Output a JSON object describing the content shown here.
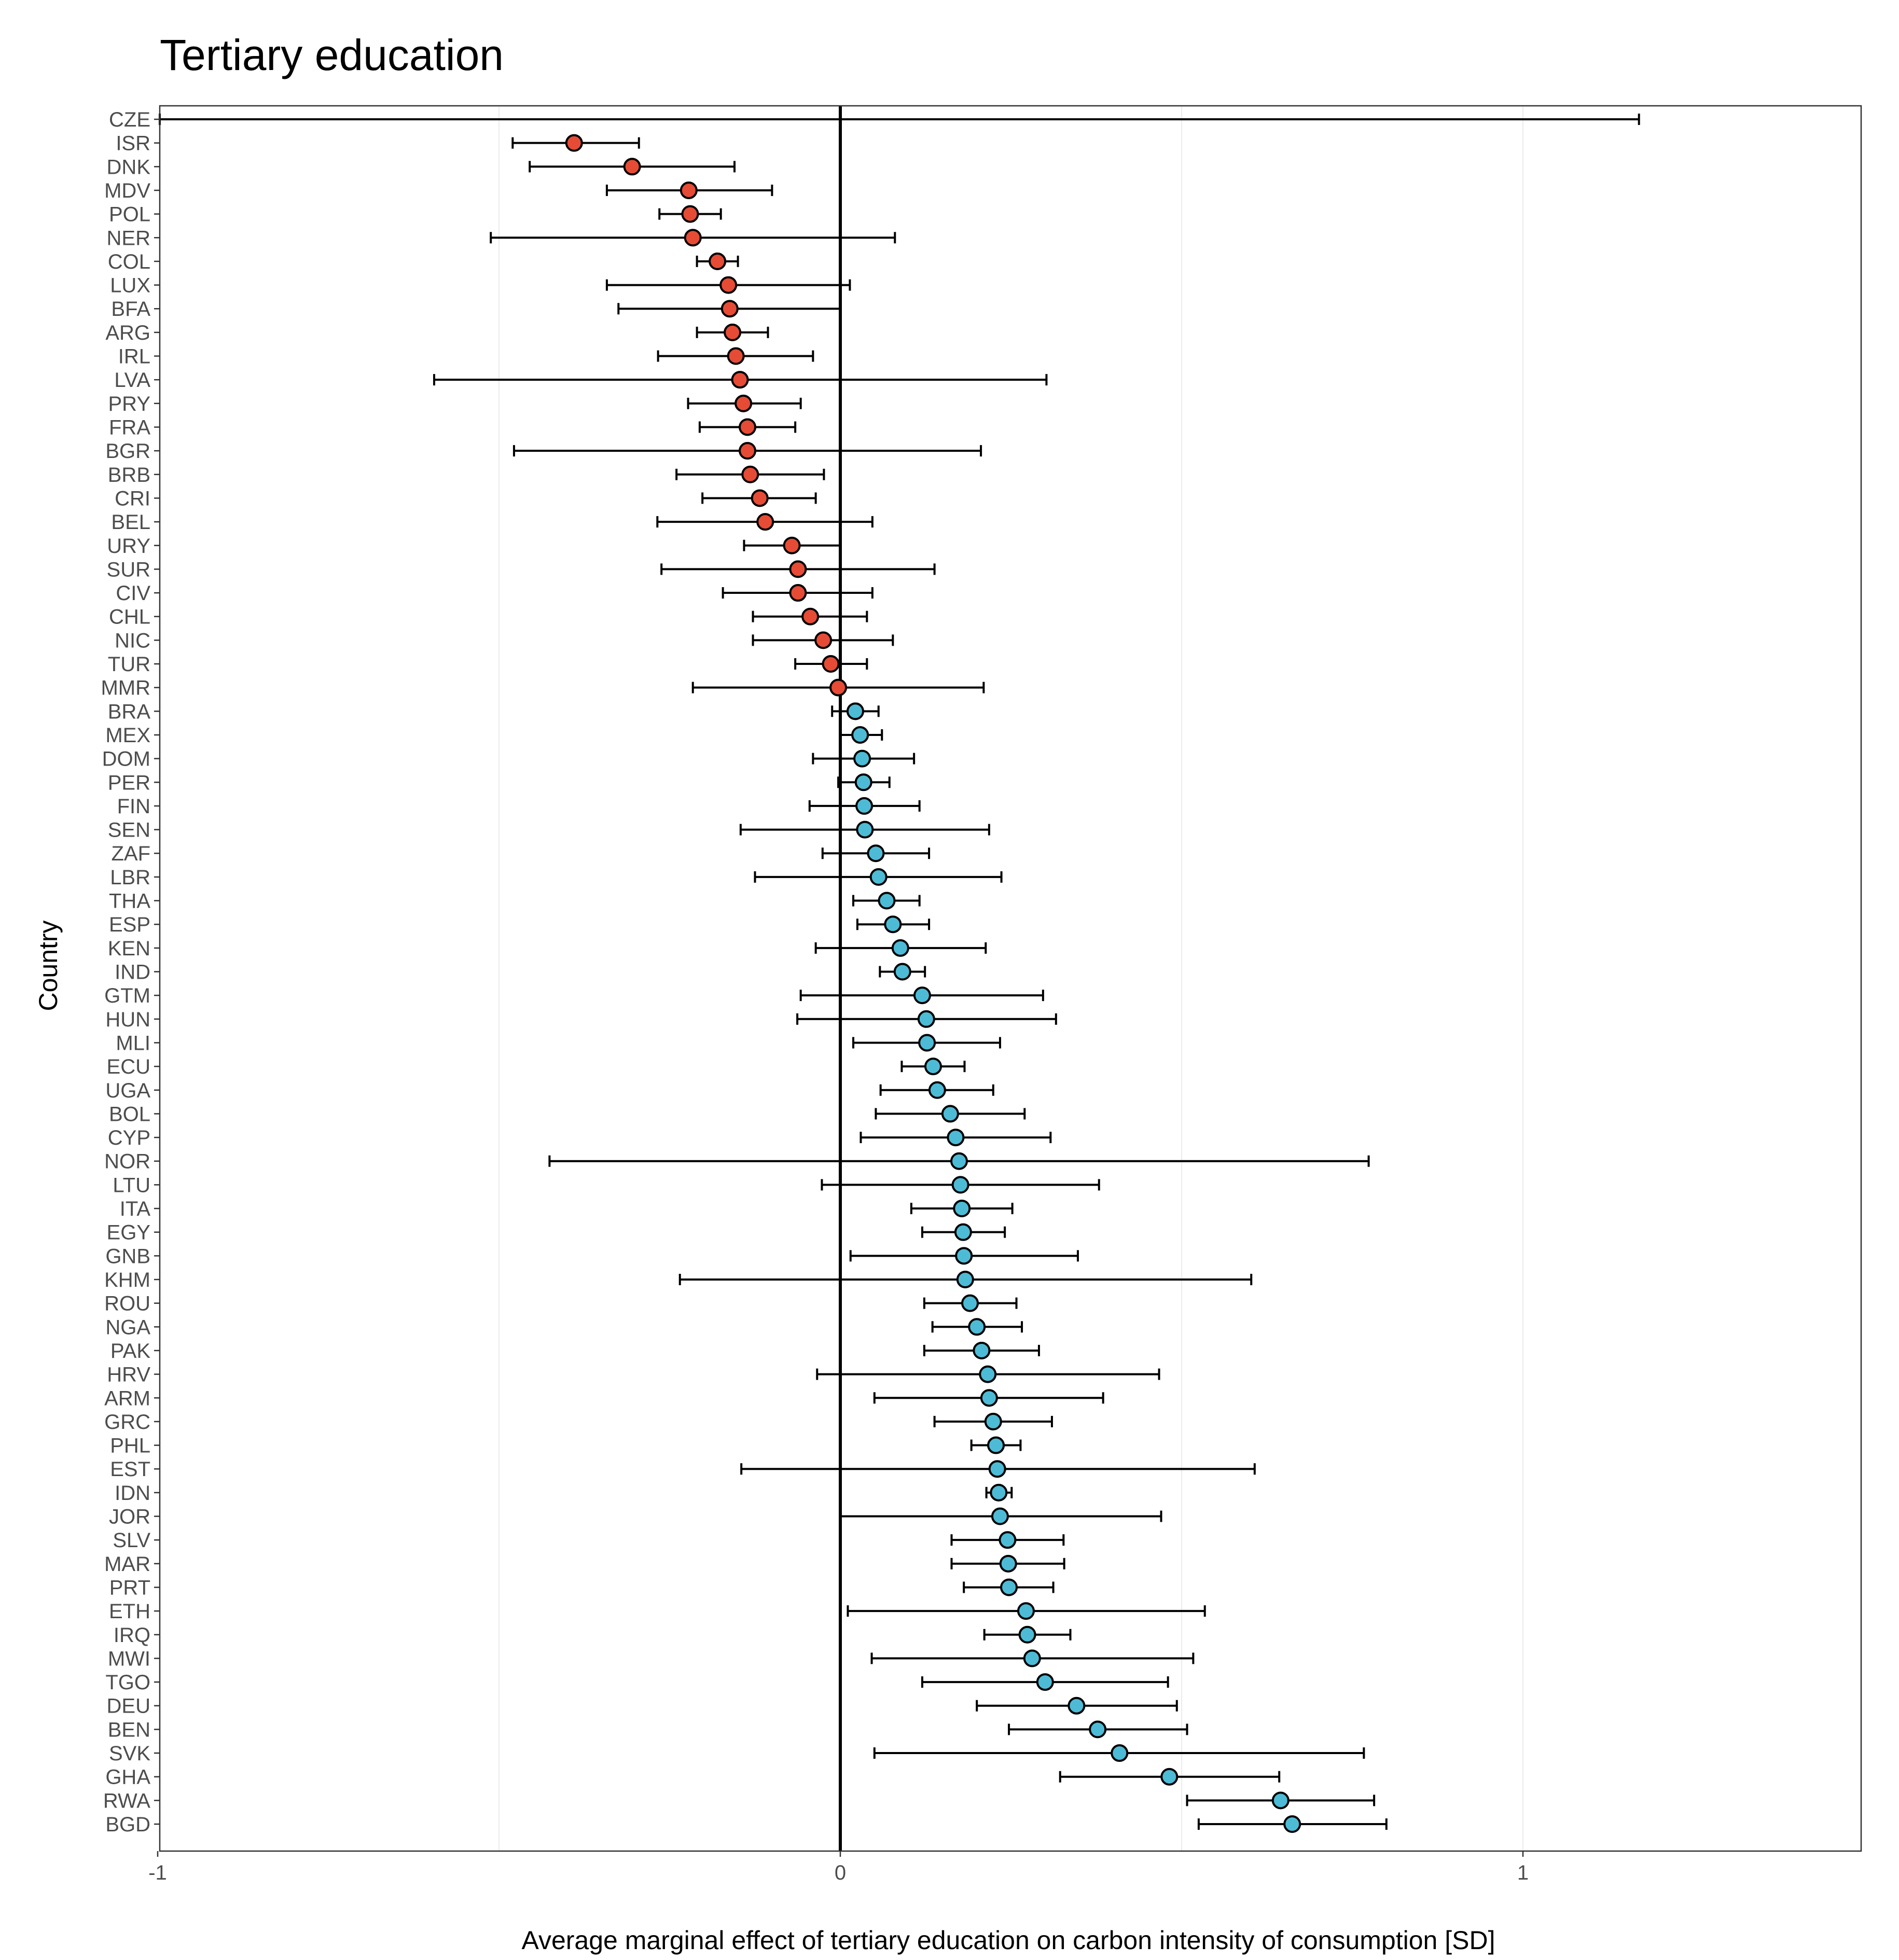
{
  "chart_data": {
    "type": "scatter",
    "title": "Tertiary education",
    "xlabel": "Average marginal effect of tertiary education on carbon intensity of consumption [SD]",
    "ylabel": "Country",
    "xlim": [
      -1,
      1.5
    ],
    "x_ticks": [
      "-1",
      "0",
      "1"
    ],
    "x_tick_values": [
      -1,
      0,
      1
    ],
    "grid": true,
    "colors": {
      "negative": "#E64B35",
      "positive": "#4DBBD5",
      "stroke": "#000000",
      "panel_border": "#333333",
      "grid": "#ebebeb"
    },
    "points": [
      {
        "country": "CZE",
        "estimate": null,
        "lower": -1.0,
        "upper": 1.17
      },
      {
        "country": "ISR",
        "estimate": -0.39,
        "lower": -0.48,
        "upper": -0.295
      },
      {
        "country": "DNK",
        "estimate": -0.305,
        "lower": -0.455,
        "upper": -0.155
      },
      {
        "country": "MDV",
        "estimate": -0.222,
        "lower": -0.342,
        "upper": -0.1
      },
      {
        "country": "POL",
        "estimate": -0.22,
        "lower": -0.265,
        "upper": -0.175
      },
      {
        "country": "NER",
        "estimate": -0.216,
        "lower": -0.512,
        "upper": 0.08
      },
      {
        "country": "COL",
        "estimate": -0.18,
        "lower": -0.21,
        "upper": -0.15
      },
      {
        "country": "LUX",
        "estimate": -0.164,
        "lower": -0.342,
        "upper": 0.014
      },
      {
        "country": "BFA",
        "estimate": -0.162,
        "lower": -0.325,
        "upper": 0.0
      },
      {
        "country": "ARG",
        "estimate": -0.158,
        "lower": -0.21,
        "upper": -0.106
      },
      {
        "country": "IRL",
        "estimate": -0.153,
        "lower": -0.267,
        "upper": -0.04
      },
      {
        "country": "LVA",
        "estimate": -0.147,
        "lower": -0.595,
        "upper": 0.302
      },
      {
        "country": "PRY",
        "estimate": -0.142,
        "lower": -0.223,
        "upper": -0.058
      },
      {
        "country": "FRA",
        "estimate": -0.136,
        "lower": -0.206,
        "upper": -0.066
      },
      {
        "country": "BGR",
        "estimate": -0.136,
        "lower": -0.478,
        "upper": 0.206
      },
      {
        "country": "BRB",
        "estimate": -0.132,
        "lower": -0.24,
        "upper": -0.024
      },
      {
        "country": "CRI",
        "estimate": -0.118,
        "lower": -0.202,
        "upper": -0.036
      },
      {
        "country": "BEL",
        "estimate": -0.11,
        "lower": -0.268,
        "upper": 0.047
      },
      {
        "country": "URY",
        "estimate": -0.071,
        "lower": -0.141,
        "upper": 0.0
      },
      {
        "country": "SUR",
        "estimate": -0.062,
        "lower": -0.262,
        "upper": 0.138
      },
      {
        "country": "CIV",
        "estimate": -0.062,
        "lower": -0.172,
        "upper": 0.047
      },
      {
        "country": "CHL",
        "estimate": -0.044,
        "lower": -0.128,
        "upper": 0.039
      },
      {
        "country": "NIC",
        "estimate": -0.025,
        "lower": -0.128,
        "upper": 0.077
      },
      {
        "country": "TUR",
        "estimate": -0.014,
        "lower": -0.066,
        "upper": 0.039
      },
      {
        "country": "MMR",
        "estimate": -0.003,
        "lower": -0.216,
        "upper": 0.21
      },
      {
        "country": "BRA",
        "estimate": 0.022,
        "lower": -0.012,
        "upper": 0.056
      },
      {
        "country": "MEX",
        "estimate": 0.029,
        "lower": 0.0,
        "upper": 0.061
      },
      {
        "country": "DOM",
        "estimate": 0.032,
        "lower": -0.04,
        "upper": 0.108
      },
      {
        "country": "PER",
        "estimate": 0.034,
        "lower": -0.003,
        "upper": 0.072
      },
      {
        "country": "FIN",
        "estimate": 0.035,
        "lower": -0.045,
        "upper": 0.116
      },
      {
        "country": "SEN",
        "estimate": 0.036,
        "lower": -0.146,
        "upper": 0.218
      },
      {
        "country": "ZAF",
        "estimate": 0.052,
        "lower": -0.026,
        "upper": 0.13
      },
      {
        "country": "LBR",
        "estimate": 0.056,
        "lower": -0.125,
        "upper": 0.236
      },
      {
        "country": "THA",
        "estimate": 0.068,
        "lower": 0.019,
        "upper": 0.116
      },
      {
        "country": "ESP",
        "estimate": 0.077,
        "lower": 0.025,
        "upper": 0.13
      },
      {
        "country": "KEN",
        "estimate": 0.088,
        "lower": -0.036,
        "upper": 0.213
      },
      {
        "country": "IND",
        "estimate": 0.091,
        "lower": 0.058,
        "upper": 0.124
      },
      {
        "country": "GTM",
        "estimate": 0.12,
        "lower": -0.058,
        "upper": 0.297
      },
      {
        "country": "HUN",
        "estimate": 0.126,
        "lower": -0.063,
        "upper": 0.316
      },
      {
        "country": "MLI",
        "estimate": 0.127,
        "lower": 0.019,
        "upper": 0.234
      },
      {
        "country": "ECU",
        "estimate": 0.136,
        "lower": 0.09,
        "upper": 0.182
      },
      {
        "country": "UGA",
        "estimate": 0.142,
        "lower": 0.059,
        "upper": 0.224
      },
      {
        "country": "BOL",
        "estimate": 0.161,
        "lower": 0.052,
        "upper": 0.27
      },
      {
        "country": "CYP",
        "estimate": 0.169,
        "lower": 0.03,
        "upper": 0.308
      },
      {
        "country": "NOR",
        "estimate": 0.174,
        "lower": -0.426,
        "upper": 0.774
      },
      {
        "country": "LTU",
        "estimate": 0.176,
        "lower": -0.027,
        "upper": 0.379
      },
      {
        "country": "ITA",
        "estimate": 0.178,
        "lower": 0.104,
        "upper": 0.252
      },
      {
        "country": "EGY",
        "estimate": 0.18,
        "lower": 0.12,
        "upper": 0.241
      },
      {
        "country": "GNB",
        "estimate": 0.181,
        "lower": 0.015,
        "upper": 0.348
      },
      {
        "country": "KHM",
        "estimate": 0.183,
        "lower": -0.235,
        "upper": 0.602
      },
      {
        "country": "ROU",
        "estimate": 0.19,
        "lower": 0.123,
        "upper": 0.258
      },
      {
        "country": "NGA",
        "estimate": 0.2,
        "lower": 0.135,
        "upper": 0.266
      },
      {
        "country": "PAK",
        "estimate": 0.207,
        "lower": 0.123,
        "upper": 0.291
      },
      {
        "country": "HRV",
        "estimate": 0.216,
        "lower": -0.034,
        "upper": 0.467
      },
      {
        "country": "ARM",
        "estimate": 0.218,
        "lower": 0.05,
        "upper": 0.385
      },
      {
        "country": "GRC",
        "estimate": 0.224,
        "lower": 0.138,
        "upper": 0.31
      },
      {
        "country": "PHL",
        "estimate": 0.228,
        "lower": 0.192,
        "upper": 0.264
      },
      {
        "country": "EST",
        "estimate": 0.23,
        "lower": -0.145,
        "upper": 0.607
      },
      {
        "country": "IDN",
        "estimate": 0.232,
        "lower": 0.214,
        "upper": 0.251
      },
      {
        "country": "JOR",
        "estimate": 0.234,
        "lower": 0.0,
        "upper": 0.47
      },
      {
        "country": "SLV",
        "estimate": 0.245,
        "lower": 0.163,
        "upper": 0.327
      },
      {
        "country": "MAR",
        "estimate": 0.246,
        "lower": 0.163,
        "upper": 0.328
      },
      {
        "country": "PRT",
        "estimate": 0.247,
        "lower": 0.181,
        "upper": 0.312
      },
      {
        "country": "ETH",
        "estimate": 0.272,
        "lower": 0.011,
        "upper": 0.534
      },
      {
        "country": "IRQ",
        "estimate": 0.274,
        "lower": 0.211,
        "upper": 0.337
      },
      {
        "country": "MWI",
        "estimate": 0.281,
        "lower": 0.046,
        "upper": 0.517
      },
      {
        "country": "TGO",
        "estimate": 0.3,
        "lower": 0.12,
        "upper": 0.48
      },
      {
        "country": "DEU",
        "estimate": 0.346,
        "lower": 0.2,
        "upper": 0.493
      },
      {
        "country": "BEN",
        "estimate": 0.377,
        "lower": 0.247,
        "upper": 0.508
      },
      {
        "country": "SVK",
        "estimate": 0.409,
        "lower": 0.05,
        "upper": 0.767
      },
      {
        "country": "GHA",
        "estimate": 0.482,
        "lower": 0.322,
        "upper": 0.643
      },
      {
        "country": "RWA",
        "estimate": 0.645,
        "lower": 0.508,
        "upper": 0.782
      },
      {
        "country": "BGD",
        "estimate": 0.662,
        "lower": 0.525,
        "upper": 0.8
      }
    ]
  }
}
